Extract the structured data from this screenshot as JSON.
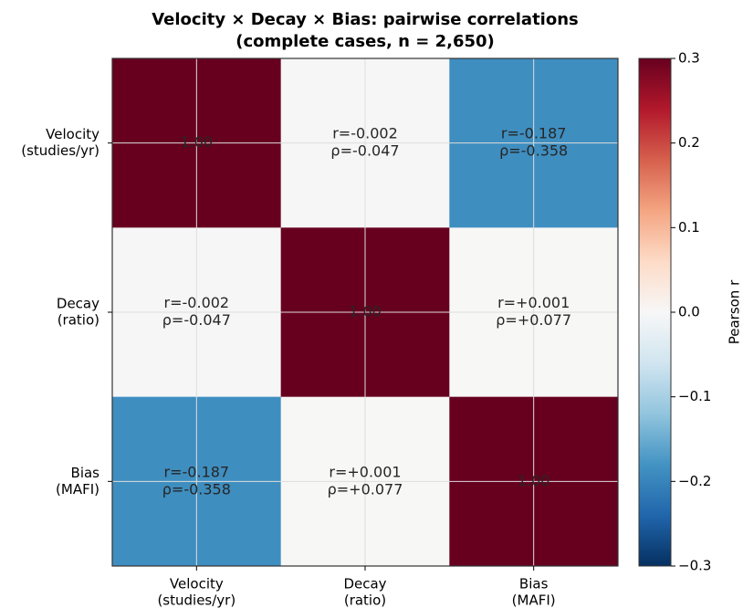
{
  "chart_data": {
    "type": "heatmap",
    "title": "Velocity × Decay × Bias: pairwise correlations",
    "subtitle": "(complete cases, n = 2,650)",
    "categories": [
      [
        "Velocity",
        "(studies/yr)"
      ],
      [
        "Decay",
        "(ratio)"
      ],
      [
        "Bias",
        "(MAFI)"
      ]
    ],
    "values": [
      [
        1,
        -0.002,
        -0.187
      ],
      [
        -0.002,
        1,
        0.001
      ],
      [
        -0.187,
        0.001,
        1
      ]
    ],
    "value_labels": [
      [
        [
          "1.00"
        ],
        [
          "r=-0.002",
          "ρ=-0.047"
        ],
        [
          "r=-0.187",
          "ρ=-0.358"
        ]
      ],
      [
        [
          "r=-0.002",
          "ρ=-0.047"
        ],
        [
          "1.00"
        ],
        [
          "r=+0.001",
          "ρ=+0.077"
        ]
      ],
      [
        [
          "r=-0.187",
          "ρ=-0.358"
        ],
        [
          "r=+0.001",
          "ρ=+0.077"
        ],
        [
          "1.00"
        ]
      ]
    ],
    "colorbar_label": "Pearson r",
    "zlim": [
      -0.3,
      0.3
    ],
    "zticks": [
      {
        "value": -0.3,
        "label": "−0.3"
      },
      {
        "value": -0.2,
        "label": "−0.2"
      },
      {
        "value": -0.1,
        "label": "−0.1"
      },
      {
        "value": 0,
        "label": "0.0"
      },
      0.1,
      0.2,
      0.3
    ],
    "colorscale": [
      "#053061",
      "#2166ac",
      "#4393c3",
      "#92c5de",
      "#d1e5f0",
      "#f7f7f7",
      "#fddbc7",
      "#f4a582",
      "#d6604d",
      "#b2182b",
      "#67001f"
    ],
    "grid": true
  }
}
